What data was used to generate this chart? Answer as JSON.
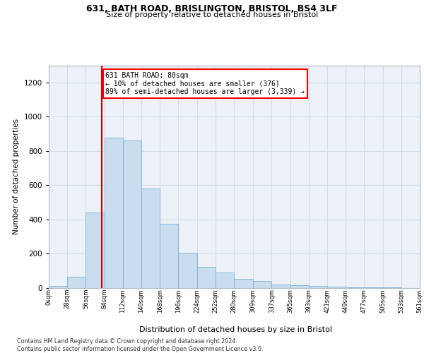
{
  "title1": "631, BATH ROAD, BRISLINGTON, BRISTOL, BS4 3LF",
  "title2": "Size of property relative to detached houses in Bristol",
  "xlabel": "Distribution of detached houses by size in Bristol",
  "ylabel": "Number of detached properties",
  "bar_color": "#c9ddef",
  "bar_edge_color": "#7ab3d4",
  "grid_color": "#d4dce8",
  "bg_color": "#edf2f8",
  "vline_color": "#cc0000",
  "vline_x": 80,
  "annotation_text": "631 BATH ROAD: 80sqm\n← 10% of detached houses are smaller (376)\n89% of semi-detached houses are larger (3,339) →",
  "bin_edges": [
    0,
    28,
    56,
    84,
    112,
    140,
    168,
    196,
    224,
    252,
    280,
    309,
    337,
    365,
    393,
    421,
    449,
    477,
    505,
    533,
    561
  ],
  "bar_heights": [
    10,
    65,
    440,
    875,
    860,
    580,
    375,
    205,
    120,
    90,
    50,
    40,
    20,
    15,
    10,
    5,
    3,
    1,
    1,
    0
  ],
  "ylim": [
    0,
    1300
  ],
  "yticks": [
    0,
    200,
    400,
    600,
    800,
    1000,
    1200
  ],
  "footnote1": "Contains HM Land Registry data © Crown copyright and database right 2024.",
  "footnote2": "Contains public sector information licensed under the Open Government Licence v3.0."
}
